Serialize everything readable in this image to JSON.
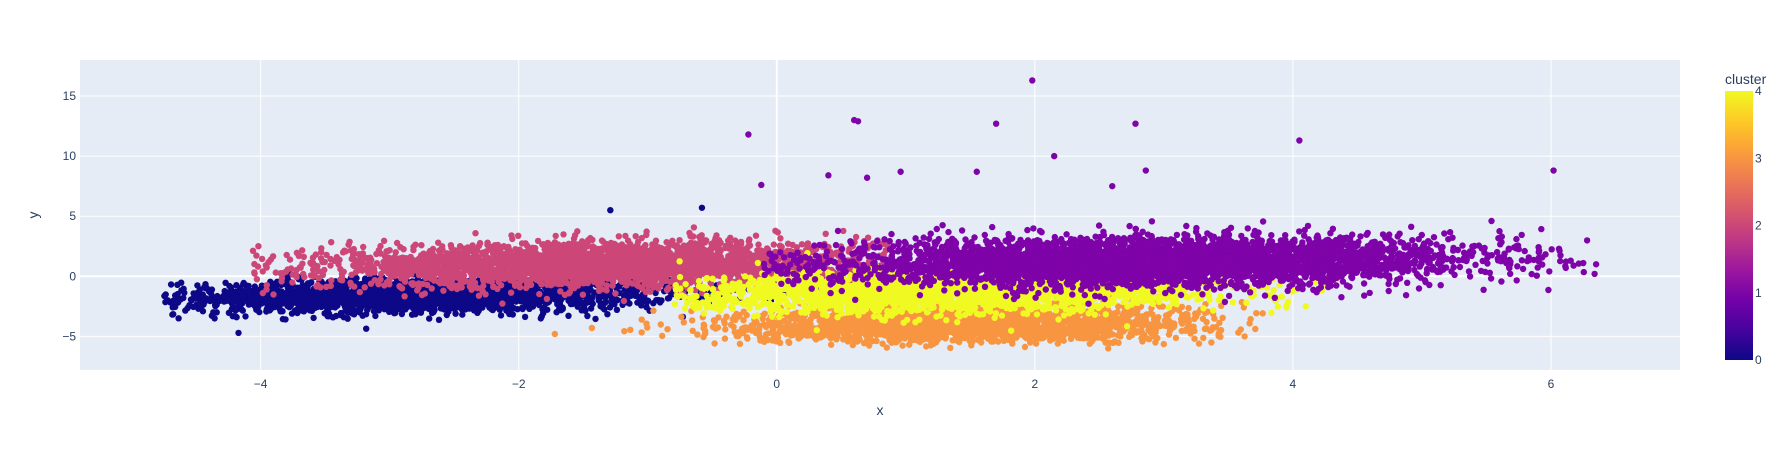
{
  "chart_data": {
    "type": "scatter",
    "xlabel": "x",
    "ylabel": "y",
    "xlim": [
      -5.4,
      7.0
    ],
    "ylim": [
      -7.8,
      18.0
    ],
    "x_ticks": [
      -4,
      -2,
      0,
      2,
      4,
      6
    ],
    "x_tick_labels": [
      "−4",
      "−2",
      "0",
      "2",
      "4",
      "6"
    ],
    "y_ticks": [
      -5,
      0,
      5,
      10,
      15
    ],
    "y_tick_labels": [
      "−5",
      "0",
      "5",
      "10",
      "15"
    ],
    "grid": true,
    "colorbar": {
      "title": "cluster",
      "range": [
        0,
        4
      ],
      "ticks": [
        0,
        1,
        2,
        3,
        4
      ],
      "colorscale": [
        "#0d0887",
        "#46039f",
        "#7201a8",
        "#9c179e",
        "#bd3786",
        "#d8576b",
        "#ed7953",
        "#fb9f3a",
        "#fdca26",
        "#f0f921"
      ]
    },
    "clusters": [
      {
        "cluster": 0,
        "color": "#0d0887",
        "center": [
          -2.7,
          -1.6
        ],
        "spread": [
          0.95,
          0.7
        ],
        "x_range": [
          -4.75,
          0.5
        ]
      },
      {
        "cluster": 1,
        "color": "#7e03a8",
        "center": [
          2.9,
          1.2
        ],
        "spread": [
          1.25,
          1.0
        ],
        "x_range": [
          -0.1,
          6.35
        ]
      },
      {
        "cluster": 2,
        "color": "#cc4778",
        "center": [
          -1.4,
          1.0
        ],
        "spread": [
          1.05,
          0.9
        ],
        "x_range": [
          -4.1,
          0.9
        ]
      },
      {
        "cluster": 3,
        "color": "#f89540",
        "center": [
          1.5,
          -4.0
        ],
        "spread": [
          0.9,
          0.75
        ],
        "x_range": [
          -2.1,
          3.8
        ]
      },
      {
        "cluster": 4,
        "color": "#f0f921",
        "center": [
          1.4,
          -1.2
        ],
        "spread": [
          1.0,
          0.85
        ],
        "x_range": [
          -0.8,
          4.4
        ]
      }
    ],
    "outlier_points": [
      {
        "x": 1.98,
        "y": 16.3,
        "cluster": 1
      },
      {
        "x": 0.6,
        "y": 13.0,
        "cluster": 1
      },
      {
        "x": 0.63,
        "y": 12.9,
        "cluster": 1
      },
      {
        "x": 1.7,
        "y": 12.7,
        "cluster": 1
      },
      {
        "x": 2.78,
        "y": 12.7,
        "cluster": 1
      },
      {
        "x": -0.22,
        "y": 11.8,
        "cluster": 1
      },
      {
        "x": 4.05,
        "y": 11.3,
        "cluster": 1
      },
      {
        "x": 2.15,
        "y": 10.0,
        "cluster": 1
      },
      {
        "x": 6.02,
        "y": 8.8,
        "cluster": 1
      },
      {
        "x": 1.55,
        "y": 8.7,
        "cluster": 1
      },
      {
        "x": 0.96,
        "y": 8.7,
        "cluster": 1
      },
      {
        "x": 2.86,
        "y": 8.8,
        "cluster": 1
      },
      {
        "x": 0.4,
        "y": 8.4,
        "cluster": 1
      },
      {
        "x": 0.7,
        "y": 8.2,
        "cluster": 1
      },
      {
        "x": -0.12,
        "y": 7.6,
        "cluster": 1
      },
      {
        "x": 2.6,
        "y": 7.5,
        "cluster": 1
      },
      {
        "x": -1.29,
        "y": 5.5,
        "cluster": 0
      },
      {
        "x": -0.58,
        "y": 5.7,
        "cluster": 0
      },
      {
        "x": 6.35,
        "y": 1.0,
        "cluster": 1
      },
      {
        "x": 6.25,
        "y": 1.1,
        "cluster": 1
      },
      {
        "x": -4.72,
        "y": -2.0,
        "cluster": 0
      },
      {
        "x": -4.68,
        "y": -2.1,
        "cluster": 0
      },
      {
        "x": 4.1,
        "y": -2.5,
        "cluster": 4
      },
      {
        "x": 3.95,
        "y": -2.6,
        "cluster": 4
      },
      {
        "x": -1.72,
        "y": -4.8,
        "cluster": 3
      }
    ]
  }
}
